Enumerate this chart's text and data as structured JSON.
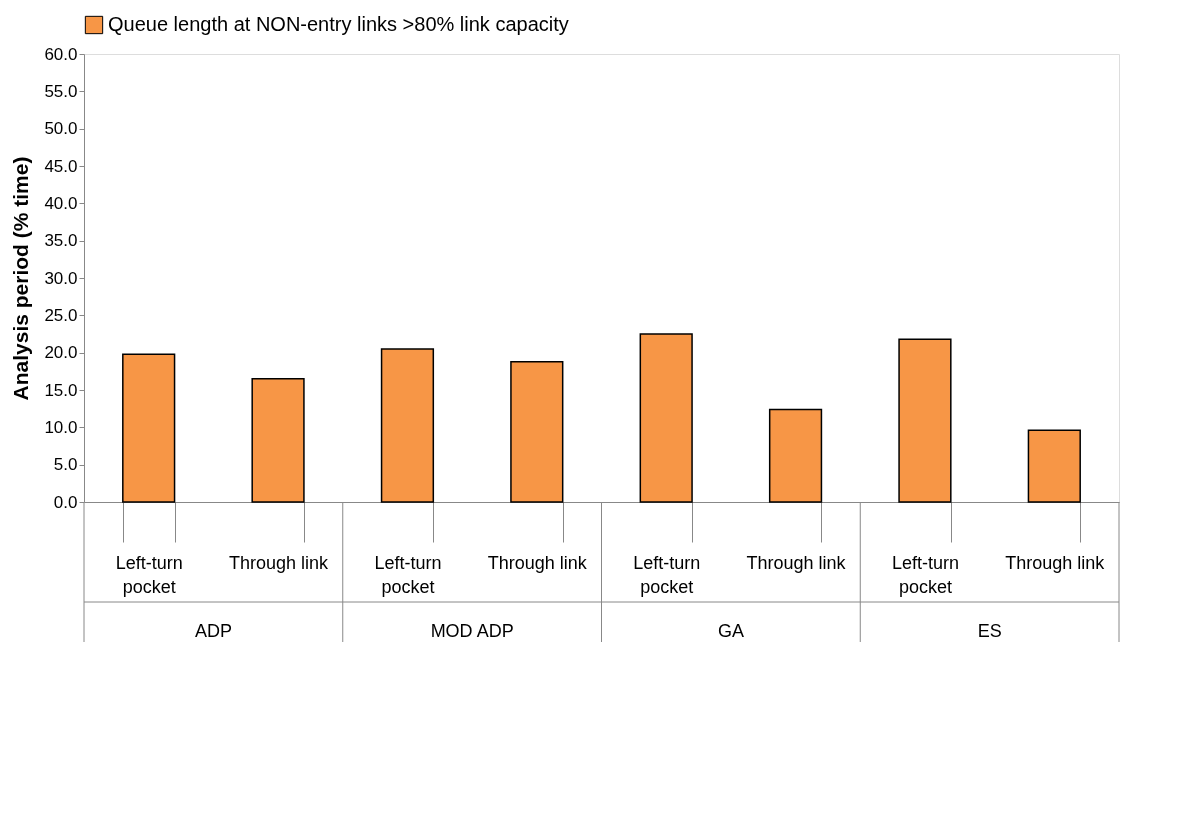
{
  "chart_data": {
    "type": "bar",
    "categories": [
      "Left-turn pocket",
      "Through link",
      "Left-turn pocket",
      "Through link",
      "Left-turn pocket",
      "Through link",
      "Left-turn pocket",
      "Through link"
    ],
    "series": [
      {
        "name": "Queue length at NON-entry links >80% link capacity",
        "color": "#f79646",
        "values": [
          19.8,
          16.5,
          20.5,
          18.8,
          22.5,
          12.4,
          21.8,
          9.6
        ]
      }
    ],
    "ylabel": "Analysis period (% time)",
    "ylim": [
      0,
      60
    ],
    "yticks": [
      {
        "value": 0,
        "label": "0.0"
      },
      {
        "value": 5,
        "label": "5.0"
      },
      {
        "value": 10,
        "label": "10.0"
      },
      {
        "value": 15,
        "label": "15.0"
      },
      {
        "value": 20,
        "label": "20.0"
      },
      {
        "value": 25,
        "label": "25.0"
      },
      {
        "value": 30,
        "label": "30.0"
      },
      {
        "value": 35,
        "label": "35.0"
      },
      {
        "value": 40,
        "label": "40.0"
      },
      {
        "value": 45,
        "label": "45.0"
      },
      {
        "value": 50,
        "label": "50.0"
      },
      {
        "value": 55,
        "label": "55.0"
      },
      {
        "value": 60,
        "label": "60.0"
      }
    ],
    "annotations": [
      "ADP",
      "MOD ADP",
      "GA",
      "ES"
    ],
    "grid": false,
    "legend": "top"
  }
}
